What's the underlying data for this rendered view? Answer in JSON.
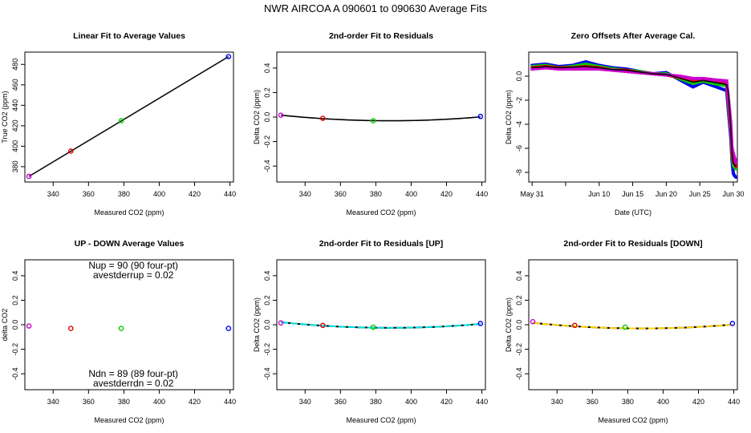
{
  "figure_title": "NWR   AIRCOA A   090601 to 090630   Average Fits",
  "colors": {
    "red": "#dd0000",
    "green": "#00cc00",
    "blue": "#0000ee",
    "magenta": "#cc00cc",
    "cyan": "#00e5e5",
    "yellow": "#ffd400",
    "black": "#000000"
  },
  "chart_data": [
    {
      "id": "p1",
      "type": "line",
      "title": "Linear Fit to Average Values",
      "xlabel": "Measured CO2 (ppm)",
      "ylabel": "True CO2 (ppm)",
      "xlim": [
        324,
        442
      ],
      "ylim": [
        365,
        492
      ],
      "xticks": [
        340,
        360,
        380,
        400,
        420,
        440
      ],
      "yticks": [
        380,
        400,
        420,
        440,
        460,
        480
      ],
      "fit_line": {
        "x": [
          326.3,
          439.2
        ],
        "y": [
          370.5,
          487.6
        ],
        "color": "black"
      },
      "points": [
        {
          "x": 326.3,
          "y": 370.5,
          "color": "magenta"
        },
        {
          "x": 350.0,
          "y": 395.2,
          "color": "red"
        },
        {
          "x": 378.5,
          "y": 424.9,
          "color": "green"
        },
        {
          "x": 439.2,
          "y": 487.6,
          "color": "blue"
        }
      ]
    },
    {
      "id": "p2",
      "type": "line",
      "title": "2nd-order Fit to Residuals",
      "xlabel": "Measured CO2 (ppm)",
      "ylabel": "Delta CO2 (ppm)",
      "xlim": [
        324,
        442
      ],
      "ylim": [
        -0.53,
        0.53
      ],
      "xticks": [
        340,
        360,
        380,
        400,
        420,
        440
      ],
      "yticks": [
        -0.4,
        -0.2,
        0.0,
        0.2,
        0.4
      ],
      "curve": {
        "color": "black",
        "x0": 326.3,
        "x1": 439.2,
        "a": 1.2e-05,
        "xm": 388,
        "c": -0.03
      },
      "points": [
        {
          "x": 326.3,
          "y": 0.015,
          "color": "magenta"
        },
        {
          "x": 350.0,
          "y": -0.01,
          "color": "red"
        },
        {
          "x": 378.5,
          "y": -0.03,
          "color": "green"
        },
        {
          "x": 439.2,
          "y": 0.005,
          "color": "blue"
        }
      ]
    },
    {
      "id": "p3",
      "type": "line",
      "title": "Zero Offsets After Average Cal.",
      "xlabel": "Date (UTC)",
      "ylabel": "Delta CO2 (ppm)",
      "xlim": [
        -0.5,
        30.6
      ],
      "ylim": [
        -8.8,
        2.0
      ],
      "xticks": [
        0,
        10,
        15,
        20,
        25,
        30
      ],
      "xticklabels": [
        "May 31",
        "Jun 10",
        "Jun 15",
        "Jun 20",
        "Jun 25",
        "Jun 30"
      ],
      "xminor": [
        5
      ],
      "yticks": [
        -8,
        -6,
        -4,
        -2,
        0
      ],
      "series": [
        {
          "color": "blue",
          "x": [
            0,
            2,
            4,
            6,
            8,
            10,
            12,
            14,
            16,
            18,
            20,
            22,
            24,
            25.5,
            27,
            29.0,
            29.6,
            29.8,
            30.0,
            30.2,
            30.4
          ],
          "y": [
            0.9,
            1.0,
            0.8,
            0.9,
            1.2,
            0.9,
            0.7,
            0.6,
            0.4,
            0.2,
            0.3,
            -0.3,
            -0.9,
            -0.5,
            -0.8,
            -1.2,
            -5.0,
            -7.0,
            -8.1,
            -8.3,
            -8.4
          ]
        },
        {
          "color": "green",
          "x": [
            0,
            2,
            4,
            6,
            8,
            10,
            12,
            14,
            16,
            18,
            20,
            22,
            24,
            25.5,
            27,
            29.0,
            29.6,
            29.8,
            30.0,
            30.2,
            30.4
          ],
          "y": [
            0.8,
            0.9,
            0.7,
            0.8,
            1.0,
            0.8,
            0.6,
            0.5,
            0.4,
            0.2,
            0.2,
            -0.2,
            -0.6,
            -0.4,
            -0.6,
            -0.8,
            -4.5,
            -6.6,
            -7.4,
            -7.6,
            -7.7
          ]
        },
        {
          "color": "red",
          "x": [
            0,
            2,
            4,
            6,
            8,
            10,
            12,
            14,
            16,
            18,
            20,
            22,
            24,
            25.5,
            27,
            29.0,
            29.6,
            29.8,
            30.0,
            30.2,
            30.4
          ],
          "y": [
            0.7,
            0.8,
            0.7,
            0.7,
            0.8,
            0.7,
            0.5,
            0.5,
            0.3,
            0.2,
            0.1,
            -0.1,
            -0.4,
            -0.3,
            -0.4,
            -0.6,
            -4.2,
            -6.3,
            -7.1,
            -7.3,
            -7.5
          ]
        },
        {
          "color": "magenta",
          "x": [
            0,
            2,
            4,
            6,
            8,
            10,
            12,
            14,
            16,
            18,
            20,
            22,
            24,
            25.5,
            27,
            29.0,
            29.6,
            29.8,
            30.0,
            30.2,
            30.4
          ],
          "y": [
            0.6,
            0.7,
            0.6,
            0.6,
            0.6,
            0.6,
            0.5,
            0.4,
            0.3,
            0.2,
            0.1,
            0.0,
            -0.2,
            -0.2,
            -0.3,
            -0.4,
            -3.8,
            -6.0,
            -6.5,
            -6.9,
            -7.2
          ]
        },
        {
          "color": "black",
          "x": [
            0,
            2,
            4,
            6,
            8,
            10,
            12,
            14,
            16,
            18,
            20,
            22,
            24,
            25.5,
            27,
            29.0,
            29.3,
            29.6,
            29.8,
            30.0,
            30.2,
            30.4
          ],
          "y": [
            0.7,
            0.8,
            0.7,
            0.75,
            0.8,
            0.7,
            0.55,
            0.5,
            0.35,
            0.2,
            0.15,
            -0.15,
            -0.5,
            -0.35,
            -0.5,
            -0.7,
            -1.5,
            -4.2,
            -6.3,
            -7.2,
            -7.4,
            -7.5
          ]
        }
      ]
    },
    {
      "id": "p4",
      "type": "scatter",
      "title": "UP - DOWN Average Values",
      "xlabel": "Measured CO2 (ppm)",
      "ylabel": "delta CO2",
      "xlim": [
        324,
        442
      ],
      "ylim": [
        -0.53,
        0.53
      ],
      "xticks": [
        340,
        360,
        380,
        400,
        420,
        440
      ],
      "yticks": [
        -0.4,
        -0.2,
        0.0,
        0.2,
        0.4
      ],
      "annotations": {
        "top1": "Nup = 90 (90 four-pt)",
        "top2": "avestderrup =  0.02",
        "bottom1": "Ndn = 89 (89 four-pt)",
        "bottom2": "avestderrdn =  0.02"
      },
      "points": [
        {
          "x": 326.3,
          "y": -0.01,
          "color": "magenta"
        },
        {
          "x": 350.0,
          "y": -0.03,
          "color": "red"
        },
        {
          "x": 378.5,
          "y": -0.03,
          "color": "green"
        },
        {
          "x": 439.2,
          "y": -0.03,
          "color": "blue"
        }
      ]
    },
    {
      "id": "p5",
      "type": "line",
      "title": "2nd-order Fit to Residuals [UP]",
      "xlabel": "Measured CO2 (ppm)",
      "ylabel": "Delta CO2 (ppm)",
      "xlim": [
        324,
        442
      ],
      "ylim": [
        -0.53,
        0.53
      ],
      "xticks": [
        340,
        360,
        380,
        400,
        420,
        440
      ],
      "yticks": [
        -0.4,
        -0.2,
        0.0,
        0.2,
        0.4
      ],
      "curve": {
        "color": "cyan",
        "under": "black",
        "x0": 326.3,
        "x1": 439.2,
        "a": 1.2e-05,
        "xm": 388,
        "c": -0.025
      },
      "points": [
        {
          "x": 326.3,
          "y": 0.015,
          "color": "magenta"
        },
        {
          "x": 350.0,
          "y": -0.005,
          "color": "red"
        },
        {
          "x": 378.5,
          "y": -0.02,
          "color": "green"
        },
        {
          "x": 439.2,
          "y": 0.01,
          "color": "blue"
        }
      ]
    },
    {
      "id": "p6",
      "type": "line",
      "title": "2nd-order Fit to Residuals [DOWN]",
      "xlabel": "Measured CO2 (ppm)",
      "ylabel": "Delta CO2 (ppm)",
      "xlim": [
        324,
        442
      ],
      "ylim": [
        -0.53,
        0.53
      ],
      "xticks": [
        340,
        360,
        380,
        400,
        420,
        440
      ],
      "yticks": [
        -0.4,
        -0.2,
        0.0,
        0.2,
        0.4
      ],
      "curve": {
        "color": "yellow",
        "under": "black",
        "x0": 326.3,
        "x1": 439.2,
        "a": 1.2e-05,
        "xm": 388,
        "c": -0.03
      },
      "points": [
        {
          "x": 326.3,
          "y": 0.025,
          "color": "magenta"
        },
        {
          "x": 350.0,
          "y": -0.005,
          "color": "red"
        },
        {
          "x": 378.5,
          "y": -0.02,
          "color": "green"
        },
        {
          "x": 439.2,
          "y": 0.01,
          "color": "blue"
        }
      ]
    }
  ]
}
